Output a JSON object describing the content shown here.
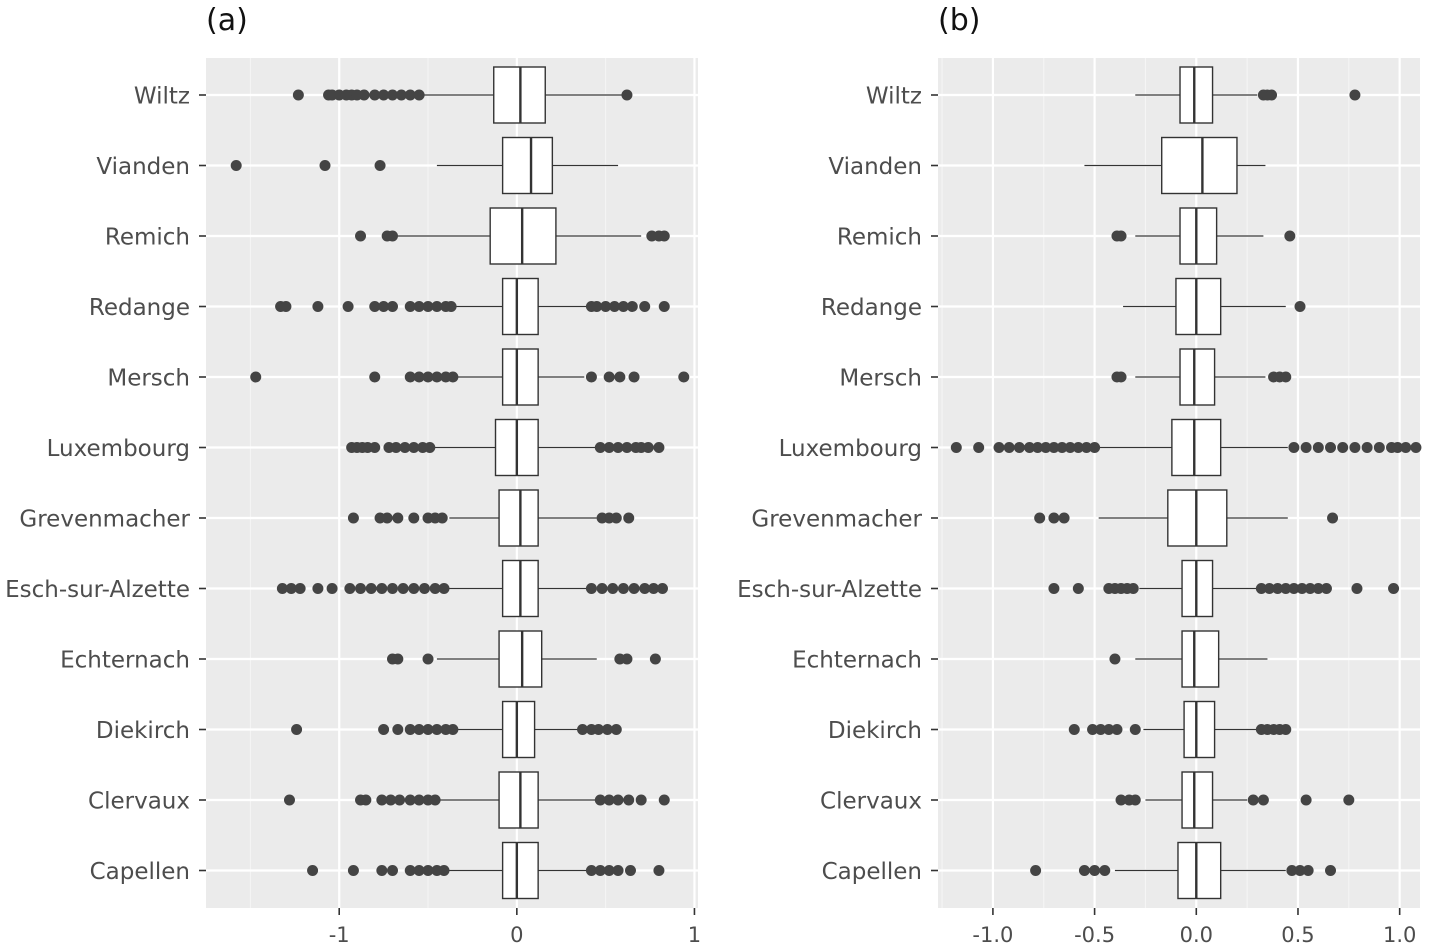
{
  "chart_data": [
    {
      "type": "boxplot",
      "panel_label": "(a)",
      "orientation": "horizontal",
      "xlim": [
        -1.75,
        1.02
      ],
      "xticks": [
        -1,
        0,
        1
      ],
      "xtick_labels": [
        "-1",
        "0",
        "1"
      ],
      "grid": true,
      "categories": [
        "Wiltz",
        "Vianden",
        "Remich",
        "Redange",
        "Mersch",
        "Luxembourg",
        "Grevenmacher",
        "Esch-sur-Alzette",
        "Echternach",
        "Diekirch",
        "Clervaux",
        "Capellen"
      ],
      "boxes": [
        {
          "category": "Wiltz",
          "whisker_low": -0.52,
          "q1": -0.13,
          "median": 0.02,
          "q3": 0.16,
          "whisker_high": 0.6,
          "outliers": [
            -1.23,
            -1.06,
            -1.04,
            -1.0,
            -0.96,
            -0.93,
            -0.9,
            -0.86,
            -0.8,
            -0.75,
            -0.7,
            -0.65,
            -0.6,
            -0.55,
            0.62
          ]
        },
        {
          "category": "Vianden",
          "whisker_low": -0.45,
          "q1": -0.08,
          "median": 0.08,
          "q3": 0.2,
          "whisker_high": 0.57,
          "outliers": [
            -1.58,
            -1.08,
            -0.77
          ]
        },
        {
          "category": "Remich",
          "whisker_low": -0.7,
          "q1": -0.15,
          "median": 0.03,
          "q3": 0.22,
          "whisker_high": 0.7,
          "outliers": [
            -0.88,
            -0.73,
            -0.7,
            0.76,
            0.8,
            0.83
          ]
        },
        {
          "category": "Redange",
          "whisker_low": -0.35,
          "q1": -0.08,
          "median": 0.0,
          "q3": 0.12,
          "whisker_high": 0.4,
          "outliers": [
            -1.33,
            -1.3,
            -1.12,
            -0.95,
            -0.8,
            -0.75,
            -0.7,
            -0.6,
            -0.55,
            -0.5,
            -0.45,
            -0.4,
            -0.37,
            0.42,
            0.45,
            0.5,
            0.55,
            0.6,
            0.65,
            0.72,
            0.83
          ]
        },
        {
          "category": "Mersch",
          "whisker_low": -0.35,
          "q1": -0.08,
          "median": 0.0,
          "q3": 0.12,
          "whisker_high": 0.38,
          "outliers": [
            -1.47,
            -0.8,
            -0.6,
            -0.55,
            -0.5,
            -0.45,
            -0.4,
            -0.36,
            0.42,
            0.52,
            0.58,
            0.66,
            0.94
          ]
        },
        {
          "category": "Luxembourg",
          "whisker_low": -0.47,
          "q1": -0.12,
          "median": 0.0,
          "q3": 0.12,
          "whisker_high": 0.45,
          "outliers": [
            -0.93,
            -0.9,
            -0.87,
            -0.84,
            -0.8,
            -0.72,
            -0.68,
            -0.63,
            -0.58,
            -0.53,
            -0.49,
            0.47,
            0.52,
            0.57,
            0.62,
            0.67,
            0.7,
            0.74,
            0.8
          ]
        },
        {
          "category": "Grevenmacher",
          "whisker_low": -0.38,
          "q1": -0.1,
          "median": 0.02,
          "q3": 0.12,
          "whisker_high": 0.45,
          "outliers": [
            -0.92,
            -0.77,
            -0.73,
            -0.67,
            -0.58,
            -0.5,
            -0.46,
            -0.42,
            0.48,
            0.52,
            0.56,
            0.63
          ]
        },
        {
          "category": "Esch-sur-Alzette",
          "whisker_low": -0.38,
          "q1": -0.08,
          "median": 0.02,
          "q3": 0.12,
          "whisker_high": 0.4,
          "outliers": [
            -1.32,
            -1.27,
            -1.22,
            -1.12,
            -1.04,
            -0.94,
            -0.88,
            -0.82,
            -0.76,
            -0.7,
            -0.64,
            -0.58,
            -0.52,
            -0.46,
            -0.41,
            0.42,
            0.48,
            0.54,
            0.6,
            0.66,
            0.72,
            0.77,
            0.82
          ]
        },
        {
          "category": "Echternach",
          "whisker_low": -0.45,
          "q1": -0.1,
          "median": 0.03,
          "q3": 0.14,
          "whisker_high": 0.45,
          "outliers": [
            -0.7,
            -0.67,
            -0.5,
            0.58,
            0.62,
            0.78
          ]
        },
        {
          "category": "Diekirch",
          "whisker_low": -0.35,
          "q1": -0.08,
          "median": 0.0,
          "q3": 0.1,
          "whisker_high": 0.35,
          "outliers": [
            -1.24,
            -0.75,
            -0.67,
            -0.6,
            -0.55,
            -0.5,
            -0.45,
            -0.4,
            -0.36,
            0.37,
            0.42,
            0.46,
            0.51,
            0.56
          ]
        },
        {
          "category": "Clervaux",
          "whisker_low": -0.45,
          "q1": -0.1,
          "median": 0.02,
          "q3": 0.12,
          "whisker_high": 0.45,
          "outliers": [
            -1.28,
            -0.88,
            -0.85,
            -0.76,
            -0.71,
            -0.66,
            -0.6,
            -0.55,
            -0.5,
            -0.46,
            0.47,
            0.52,
            0.57,
            0.63,
            0.7,
            0.83
          ]
        },
        {
          "category": "Capellen",
          "whisker_low": -0.4,
          "q1": -0.08,
          "median": 0.0,
          "q3": 0.12,
          "whisker_high": 0.4,
          "outliers": [
            -1.15,
            -0.92,
            -0.76,
            -0.7,
            -0.6,
            -0.55,
            -0.5,
            -0.45,
            -0.41,
            0.42,
            0.47,
            0.52,
            0.57,
            0.64,
            0.8
          ]
        }
      ]
    },
    {
      "type": "boxplot",
      "panel_label": "(b)",
      "orientation": "horizontal",
      "xlim": [
        -1.27,
        1.1
      ],
      "xticks": [
        -1.0,
        -0.5,
        0.0,
        0.5,
        1.0
      ],
      "xtick_labels": [
        "-1.0",
        "-0.5",
        "0.0",
        "0.5",
        "1.0"
      ],
      "grid": true,
      "categories": [
        "Wiltz",
        "Vianden",
        "Remich",
        "Redange",
        "Mersch",
        "Luxembourg",
        "Grevenmacher",
        "Esch-sur-Alzette",
        "Echternach",
        "Diekirch",
        "Clervaux",
        "Capellen"
      ],
      "boxes": [
        {
          "category": "Wiltz",
          "whisker_low": -0.3,
          "q1": -0.08,
          "median": -0.01,
          "q3": 0.08,
          "whisker_high": 0.3,
          "outliers": [
            0.33,
            0.35,
            0.37,
            0.78
          ]
        },
        {
          "category": "Vianden",
          "whisker_low": -0.55,
          "q1": -0.17,
          "median": 0.03,
          "q3": 0.2,
          "whisker_high": 0.34,
          "outliers": []
        },
        {
          "category": "Remich",
          "whisker_low": -0.3,
          "q1": -0.08,
          "median": 0.0,
          "q3": 0.1,
          "whisker_high": 0.33,
          "outliers": [
            -0.39,
            -0.37,
            0.46
          ]
        },
        {
          "category": "Redange",
          "whisker_low": -0.36,
          "q1": -0.1,
          "median": 0.0,
          "q3": 0.12,
          "whisker_high": 0.44,
          "outliers": [
            0.51
          ]
        },
        {
          "category": "Mersch",
          "whisker_low": -0.3,
          "q1": -0.08,
          "median": -0.01,
          "q3": 0.09,
          "whisker_high": 0.34,
          "outliers": [
            -0.39,
            -0.37,
            0.38,
            0.41,
            0.44
          ]
        },
        {
          "category": "Luxembourg",
          "whisker_low": -0.48,
          "q1": -0.12,
          "median": -0.01,
          "q3": 0.12,
          "whisker_high": 0.45,
          "outliers": [
            -1.18,
            -1.07,
            -0.97,
            -0.92,
            -0.87,
            -0.82,
            -0.78,
            -0.74,
            -0.7,
            -0.66,
            -0.62,
            -0.58,
            -0.54,
            -0.5,
            0.48,
            0.54,
            0.6,
            0.66,
            0.72,
            0.78,
            0.84,
            0.9,
            0.96,
            0.99,
            1.03,
            1.08
          ]
        },
        {
          "category": "Grevenmacher",
          "whisker_low": -0.48,
          "q1": -0.14,
          "median": 0.0,
          "q3": 0.15,
          "whisker_high": 0.45,
          "outliers": [
            -0.77,
            -0.7,
            -0.65,
            0.67
          ]
        },
        {
          "category": "Esch-sur-Alzette",
          "whisker_low": -0.28,
          "q1": -0.07,
          "median": 0.0,
          "q3": 0.08,
          "whisker_high": 0.3,
          "outliers": [
            -0.7,
            -0.58,
            -0.43,
            -0.4,
            -0.37,
            -0.34,
            -0.31,
            0.32,
            0.36,
            0.4,
            0.44,
            0.48,
            0.52,
            0.56,
            0.6,
            0.64,
            0.79,
            0.97
          ]
        },
        {
          "category": "Echternach",
          "whisker_low": -0.3,
          "q1": -0.07,
          "median": -0.01,
          "q3": 0.11,
          "whisker_high": 0.35,
          "outliers": [
            -0.4
          ]
        },
        {
          "category": "Diekirch",
          "whisker_low": -0.26,
          "q1": -0.06,
          "median": 0.0,
          "q3": 0.09,
          "whisker_high": 0.3,
          "outliers": [
            -0.6,
            -0.51,
            -0.47,
            -0.43,
            -0.39,
            -0.3,
            0.32,
            0.35,
            0.38,
            0.41,
            0.44
          ]
        },
        {
          "category": "Clervaux",
          "whisker_low": -0.25,
          "q1": -0.07,
          "median": -0.01,
          "q3": 0.08,
          "whisker_high": 0.25,
          "outliers": [
            -0.37,
            -0.33,
            -0.3,
            0.28,
            0.33,
            0.54,
            0.75
          ]
        },
        {
          "category": "Capellen",
          "whisker_low": -0.4,
          "q1": -0.09,
          "median": 0.0,
          "q3": 0.12,
          "whisker_high": 0.44,
          "outliers": [
            -0.79,
            -0.55,
            -0.5,
            -0.45,
            0.47,
            0.51,
            0.55,
            0.66
          ]
        }
      ]
    }
  ]
}
